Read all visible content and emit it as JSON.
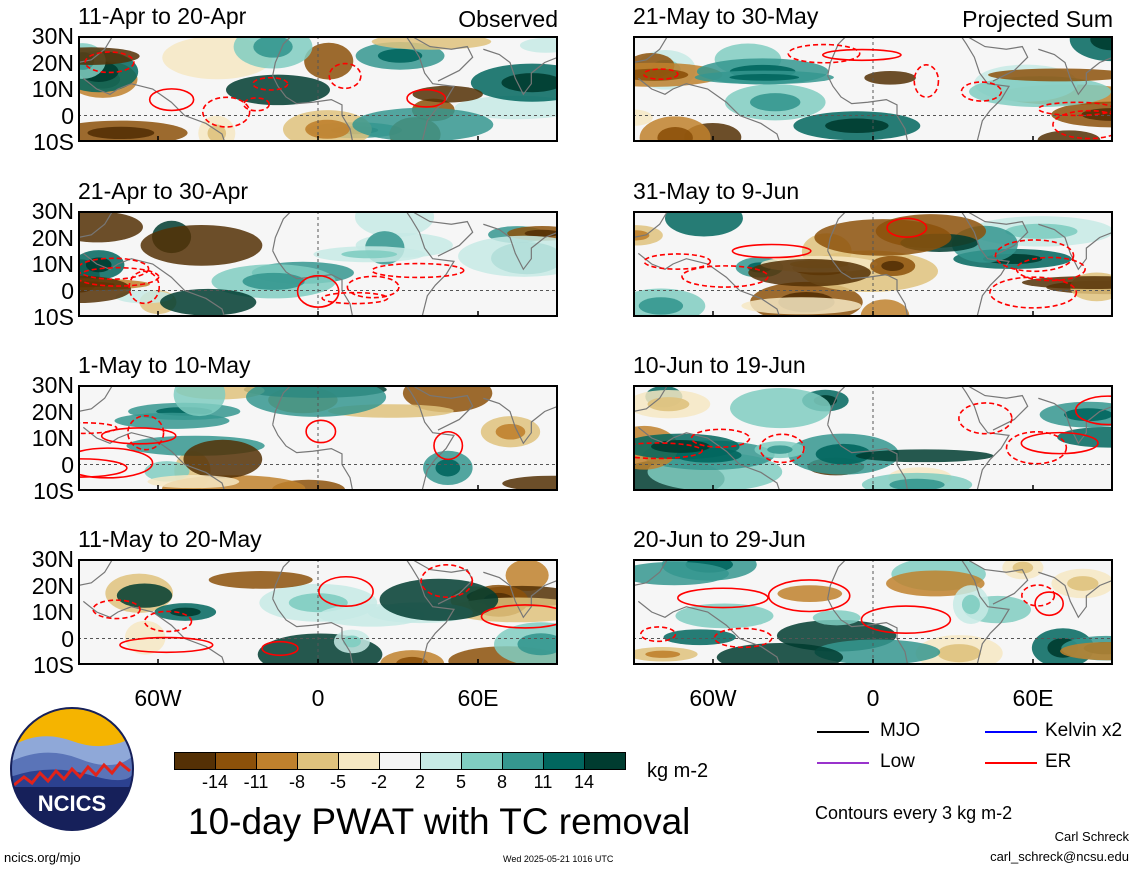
{
  "panels": [
    {
      "col": 0,
      "row": 0,
      "title": "11-Apr to 20-Apr",
      "label": "Observed"
    },
    {
      "col": 0,
      "row": 1,
      "title": "21-Apr to 30-Apr",
      "label": ""
    },
    {
      "col": 0,
      "row": 2,
      "title": "1-May to 10-May",
      "label": ""
    },
    {
      "col": 0,
      "row": 3,
      "title": "11-May to 20-May",
      "label": ""
    },
    {
      "col": 1,
      "row": 0,
      "title": "21-May to 30-May",
      "label": "Projected Sum"
    },
    {
      "col": 1,
      "row": 1,
      "title": "31-May to 9-Jun",
      "label": ""
    },
    {
      "col": 1,
      "row": 2,
      "title": "10-Jun to 19-Jun",
      "label": ""
    },
    {
      "col": 1,
      "row": 3,
      "title": "20-Jun to 29-Jun",
      "label": ""
    }
  ],
  "latitude_labels": [
    "30N",
    "20N",
    "10N",
    "0",
    "10S"
  ],
  "longitude_labels": [
    "60W",
    "0",
    "60E"
  ],
  "colorbar": {
    "ticks": [
      "-14",
      "-11",
      "-8",
      "-5",
      "-2",
      "2",
      "5",
      "8",
      "11",
      "14"
    ],
    "colors": [
      "#543005",
      "#8c510a",
      "#bf812d",
      "#dfc27d",
      "#f6e8c3",
      "#f5f5f5",
      "#c7eae5",
      "#80cdc1",
      "#35978f",
      "#01665e",
      "#003c30"
    ],
    "unit": "kg m-2"
  },
  "main_title": "10-day PWAT with TC removal",
  "legend": [
    {
      "label": "MJO",
      "color": "#000000"
    },
    {
      "label": "Kelvin x2",
      "color": "#0000ff"
    },
    {
      "label": "Low",
      "color": "#9933cc"
    },
    {
      "label": "ER",
      "color": "#ff0000"
    }
  ],
  "contour_note": "Contours every 3 kg m-2",
  "credit": {
    "name": "Carl Schreck",
    "email": "carl_schreck@ncsu.edu"
  },
  "logo_text": "NCICS",
  "website": "ncics.org/mjo",
  "timestamp": "Wed 2025-05-21 1016 UTC"
}
